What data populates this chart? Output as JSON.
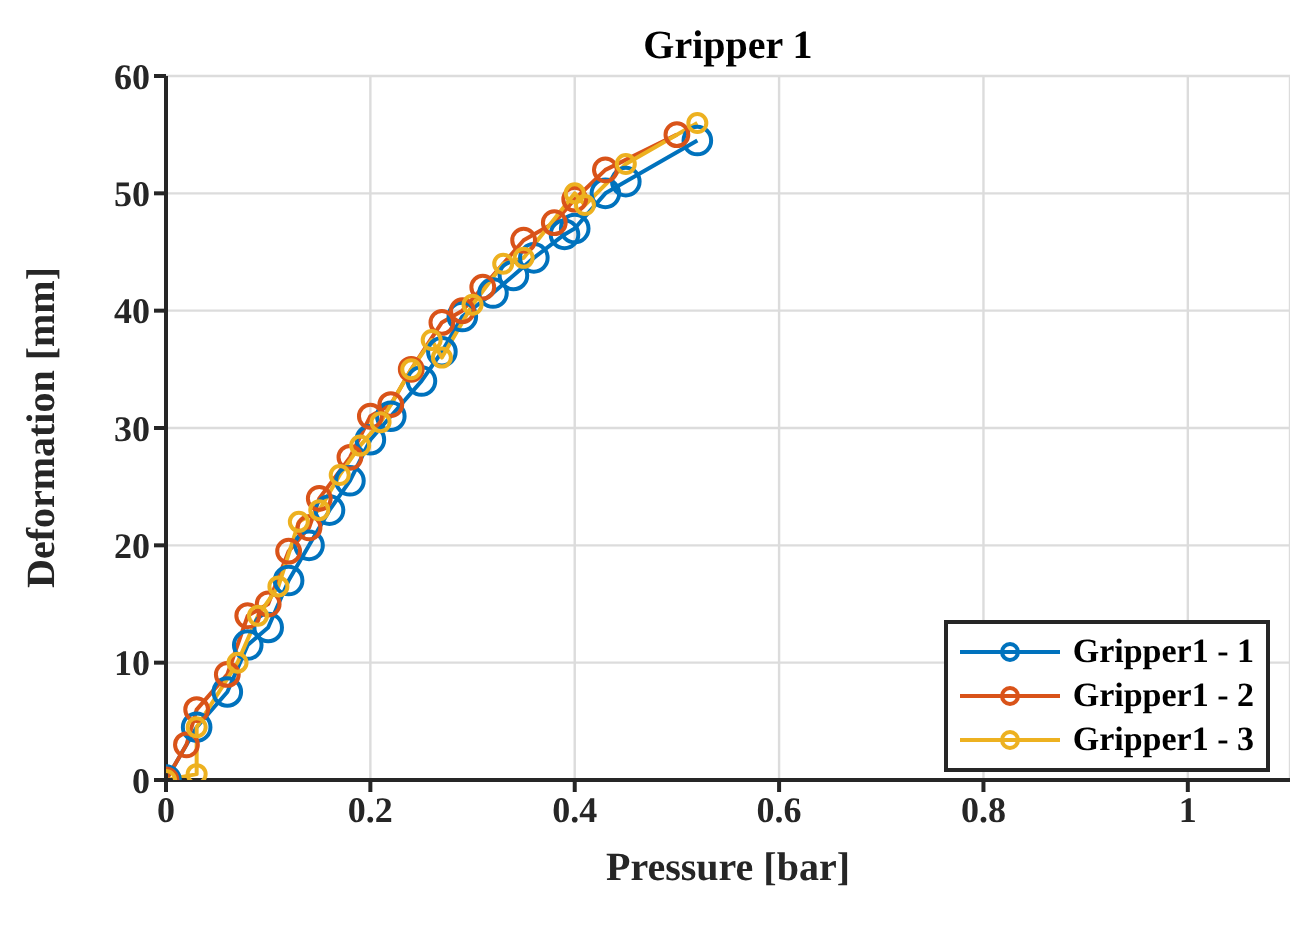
{
  "chart_data": {
    "type": "line",
    "title": "Gripper 1",
    "xlabel": "Pressure [bar]",
    "ylabel": "Deformation [mm]",
    "xlim": [
      0,
      1.1
    ],
    "xticks": [
      0,
      0.2,
      0.4,
      0.6,
      0.8,
      1
    ],
    "ylim": [
      0,
      60
    ],
    "yticks": [
      0,
      10,
      20,
      30,
      40,
      50,
      60
    ],
    "grid": true,
    "legend": "bottom right",
    "marker": "circle",
    "line_style": "solid",
    "series": [
      {
        "name": "Gripper1 - 1",
        "color": "#0072bd",
        "x": [
          0,
          0.03,
          0.06,
          0.08,
          0.1,
          0.12,
          0.14,
          0.16,
          0.18,
          0.2,
          0.22,
          0.25,
          0.27,
          0.29,
          0.32,
          0.34,
          0.36,
          0.39,
          0.4,
          0.43,
          0.45,
          0.52
        ],
        "values": [
          0,
          4.5,
          7.5,
          11.5,
          13,
          17,
          20,
          23,
          25.5,
          29,
          31,
          34,
          36.5,
          39.5,
          41.5,
          43,
          44.5,
          46.5,
          47,
          50,
          51,
          54.5
        ]
      },
      {
        "name": "Gripper1 - 2",
        "color": "#d95319",
        "x": [
          0,
          0.02,
          0.03,
          0.06,
          0.08,
          0.1,
          0.12,
          0.14,
          0.15,
          0.18,
          0.2,
          0.22,
          0.24,
          0.27,
          0.29,
          0.31,
          0.35,
          0.38,
          0.4,
          0.43,
          0.5
        ],
        "values": [
          0,
          3,
          6,
          9,
          14,
          15,
          19.5,
          21.5,
          24,
          27.5,
          31,
          32,
          35,
          39,
          40,
          42,
          46,
          47.5,
          49.5,
          52,
          55
        ]
      },
      {
        "name": "Gripper1 - 3",
        "color": "#edb120",
        "x": [
          0,
          0.03,
          0.03,
          0.07,
          0.09,
          0.11,
          0.13,
          0.15,
          0.17,
          0.19,
          0.21,
          0.24,
          0.26,
          0.27,
          0.3,
          0.33,
          0.35,
          0.4,
          0.41,
          0.45,
          0.52
        ],
        "values": [
          0,
          0.5,
          4.5,
          10,
          14,
          16.5,
          22,
          23,
          26,
          28.5,
          30.5,
          35,
          37.5,
          36,
          40.5,
          44,
          44.5,
          50,
          49,
          52.5,
          56
        ]
      }
    ]
  }
}
